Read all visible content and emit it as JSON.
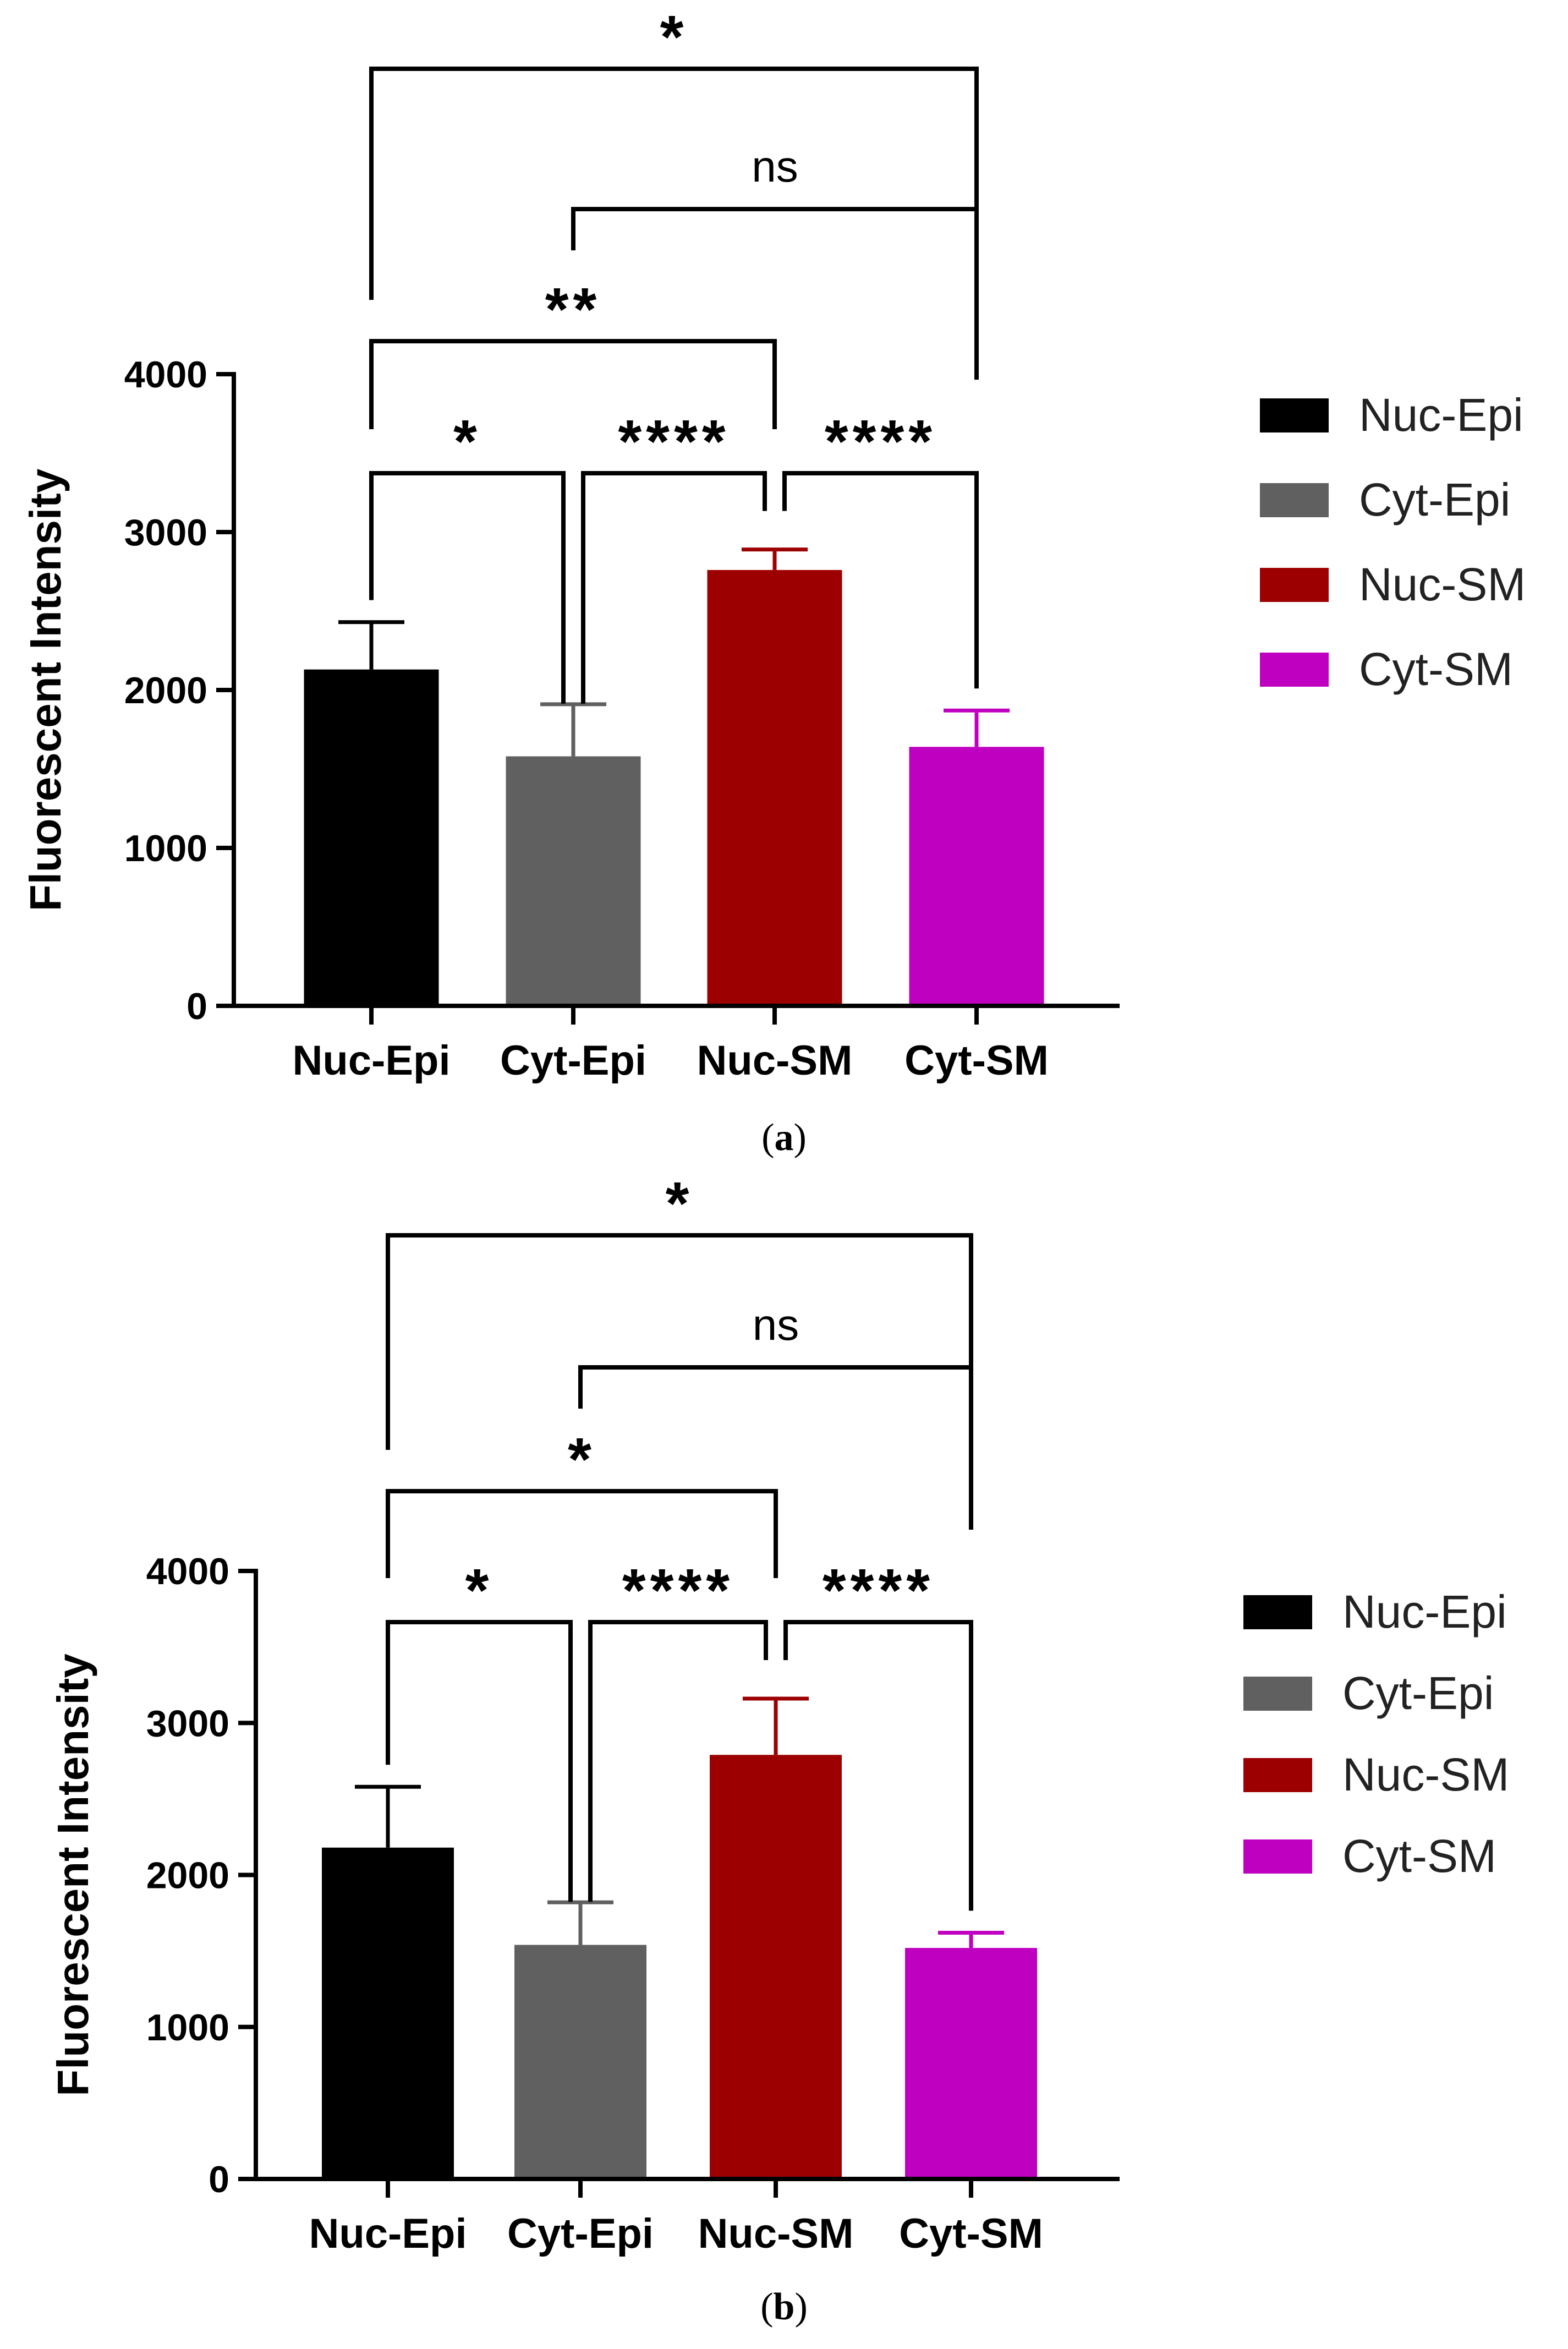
{
  "figure": {
    "panels": [
      {
        "caption_letter": "a"
      },
      {
        "caption_letter": "b"
      }
    ]
  },
  "chart_data": [
    {
      "type": "bar",
      "title": "",
      "caption": "(a)",
      "categories": [
        "Nuc-Epi",
        "Cyt-Epi",
        "Nuc-SM",
        "Cyt-SM"
      ],
      "values": [
        2130,
        1580,
        2760,
        1640
      ],
      "error_upper": [
        2430,
        1910,
        2890,
        1870
      ],
      "colors": [
        "#000000",
        "#606060",
        "#9c0000",
        "#c000c0"
      ],
      "xlabel": "",
      "ylabel": "Fluorescent Intensity",
      "ylim": [
        0,
        4000
      ],
      "yticks": [
        0,
        1000,
        2000,
        3000,
        4000
      ],
      "legend": [
        "Nuc-Epi",
        "Cyt-Epi",
        "Nuc-SM",
        "Cyt-SM"
      ],
      "legend_position": "right",
      "significance": [
        {
          "from": "Nuc-Epi",
          "to": "Cyt-SM",
          "label": "*",
          "level": 4
        },
        {
          "from": "Cyt-Epi",
          "to": "Cyt-SM",
          "label": "ns",
          "level": 3
        },
        {
          "from": "Nuc-Epi",
          "to": "Nuc-SM",
          "label": "**",
          "level": 2
        },
        {
          "from": "Nuc-Epi",
          "to": "Cyt-Epi",
          "label": "*",
          "level": 1
        },
        {
          "from": "Cyt-Epi",
          "to": "Nuc-SM",
          "label": "****",
          "level": 1
        },
        {
          "from": "Nuc-SM",
          "to": "Cyt-SM",
          "label": "****",
          "level": 1
        }
      ]
    },
    {
      "type": "bar",
      "title": "",
      "caption": "(b)",
      "categories": [
        "Nuc-Epi",
        "Cyt-Epi",
        "Nuc-SM",
        "Cyt-SM"
      ],
      "values": [
        2180,
        1540,
        2790,
        1520
      ],
      "error_upper": [
        2580,
        1820,
        3160,
        1620
      ],
      "colors": [
        "#000000",
        "#606060",
        "#9c0000",
        "#c000c0"
      ],
      "xlabel": "",
      "ylabel": "Fluorescent Intensity",
      "ylim": [
        0,
        4000
      ],
      "yticks": [
        0,
        1000,
        2000,
        3000,
        4000
      ],
      "legend": [
        "Nuc-Epi",
        "Cyt-Epi",
        "Nuc-SM",
        "Cyt-SM"
      ],
      "legend_position": "right",
      "significance": [
        {
          "from": "Nuc-Epi",
          "to": "Cyt-SM",
          "label": "*",
          "level": 4
        },
        {
          "from": "Cyt-Epi",
          "to": "Cyt-SM",
          "label": "ns",
          "level": 3
        },
        {
          "from": "Nuc-Epi",
          "to": "Nuc-SM",
          "label": "*",
          "level": 2
        },
        {
          "from": "Nuc-Epi",
          "to": "Cyt-Epi",
          "label": "*",
          "level": 1
        },
        {
          "from": "Cyt-Epi",
          "to": "Nuc-SM",
          "label": "****",
          "level": 1
        },
        {
          "from": "Nuc-SM",
          "to": "Cyt-SM",
          "label": "****",
          "level": 1
        }
      ]
    }
  ]
}
